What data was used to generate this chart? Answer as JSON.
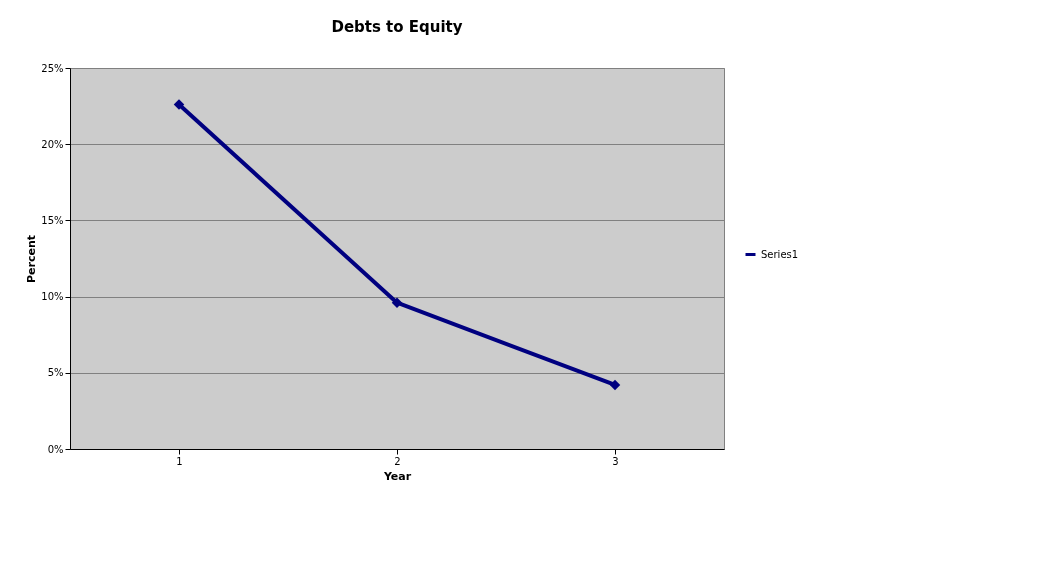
{
  "chart_data": {
    "type": "line",
    "title": "Debts to Equity",
    "xlabel": "Year",
    "ylabel": "Percent",
    "categories": [
      "1",
      "2",
      "3"
    ],
    "series": [
      {
        "name": "Series1",
        "color": "#000080",
        "values": [
          22.6,
          9.6,
          4.2
        ]
      }
    ],
    "ylim": [
      0,
      25
    ],
    "yticks": [
      {
        "value": 0,
        "label": "0%"
      },
      {
        "value": 5,
        "label": "5%"
      },
      {
        "value": 10,
        "label": "10%"
      },
      {
        "value": 15,
        "label": "15%"
      },
      {
        "value": 20,
        "label": "20%"
      },
      {
        "value": 25,
        "label": "25%"
      }
    ],
    "grid": "y",
    "legend": "right",
    "marker": "diamond",
    "line_style": "solid"
  }
}
